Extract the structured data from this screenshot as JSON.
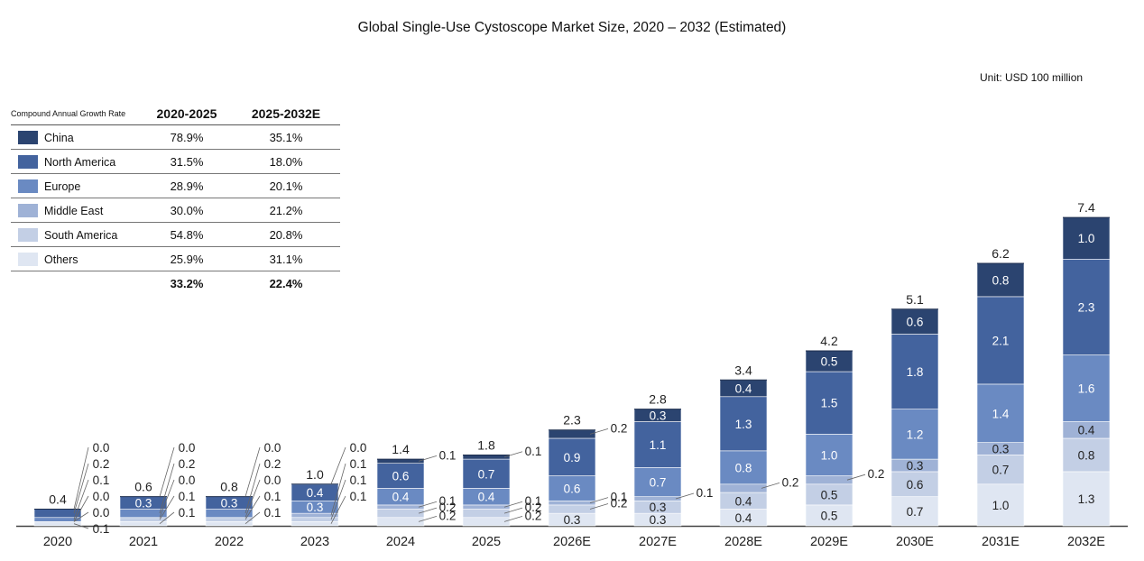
{
  "title": "Global Single-Use Cystoscope Market Size, 2020 – 2032 (Estimated)",
  "unit": "Unit: USD 100 million",
  "cagr_table": {
    "header_label": "Compound Annual Growth Rate",
    "col1": "2020-2025",
    "col2": "2025-2032E",
    "rows": [
      {
        "region": "China",
        "v1": "78.9%",
        "v2": "35.1%",
        "color": "#2b4470"
      },
      {
        "region": "North America",
        "v1": "31.5%",
        "v2": "18.0%",
        "color": "#43639e"
      },
      {
        "region": "Europe",
        "v1": "28.9%",
        "v2": "20.1%",
        "color": "#6a8ac2"
      },
      {
        "region": "Middle East",
        "v1": "30.0%",
        "v2": "21.2%",
        "color": "#9fb2d6"
      },
      {
        "region": "South America",
        "v1": "54.8%",
        "v2": "20.8%",
        "color": "#c3cfe5"
      },
      {
        "region": "Others",
        "v1": "25.9%",
        "v2": "31.1%",
        "color": "#dfe6f2"
      }
    ],
    "total": {
      "v1": "33.2%",
      "v2": "22.4%"
    }
  },
  "chart_data": {
    "type": "bar",
    "stacked": true,
    "categories": [
      "2020",
      "2021",
      "2022",
      "2023",
      "2024",
      "2025",
      "2026E",
      "2027E",
      "2028E",
      "2029E",
      "2030E",
      "2031E",
      "2032E"
    ],
    "totals": [
      "0.4",
      "0.6",
      "0.8",
      "1.0",
      "1.4",
      "1.8",
      "2.3",
      "2.8",
      "3.4",
      "4.2",
      "5.1",
      "6.2",
      "7.4"
    ],
    "series": [
      {
        "name": "Others",
        "color": "#dfe6f2",
        "values": [
          0.1,
          0.1,
          0.1,
          0.1,
          0.2,
          0.2,
          0.3,
          0.3,
          0.4,
          0.5,
          0.7,
          1.0,
          1.3
        ],
        "labels": [
          "0.1",
          "0.1",
          "0.1",
          "0.1",
          "0.2",
          "0.2",
          "0.3",
          "0.3",
          "0.4",
          "0.5",
          "0.7",
          "1.0",
          "1.3"
        ]
      },
      {
        "name": "South America",
        "color": "#c3cfe5",
        "values": [
          0.0,
          0.1,
          0.1,
          0.1,
          0.2,
          0.2,
          0.2,
          0.3,
          0.4,
          0.5,
          0.6,
          0.7,
          0.8
        ],
        "labels": [
          "0.0",
          "0.1",
          "0.1",
          "0.1",
          "0.2",
          "0.2",
          "0.2",
          "0.3",
          "0.4",
          "0.5",
          "0.6",
          "0.7",
          "0.8"
        ]
      },
      {
        "name": "Middle East",
        "color": "#9fb2d6",
        "values": [
          0.0,
          0.0,
          0.0,
          0.1,
          0.1,
          0.1,
          0.1,
          0.1,
          0.2,
          0.2,
          0.3,
          0.3,
          0.4
        ],
        "labels": [
          "0.0",
          "0.0",
          "0.0",
          "0.1",
          "0.1",
          "0.1",
          "0.1",
          "0.1",
          "0.2",
          "0.2",
          "0.3",
          "0.3",
          "0.4"
        ]
      },
      {
        "name": "Europe",
        "color": "#6a8ac2",
        "values": [
          0.1,
          0.2,
          0.2,
          0.3,
          0.4,
          0.4,
          0.6,
          0.7,
          0.8,
          1.0,
          1.2,
          1.4,
          1.6
        ],
        "labels": [
          "0.1",
          "0.2",
          "0.2",
          "0.3",
          "0.4",
          "0.4",
          "0.6",
          "0.7",
          "0.8",
          "1.0",
          "1.2",
          "1.4",
          "1.6"
        ]
      },
      {
        "name": "North America",
        "color": "#43639e",
        "values": [
          0.2,
          0.3,
          0.3,
          0.4,
          0.6,
          0.7,
          0.9,
          1.1,
          1.3,
          1.5,
          1.8,
          2.1,
          2.3
        ],
        "labels": [
          "0.2",
          "0.3",
          "0.3",
          "0.4",
          "0.6",
          "0.7",
          "0.9",
          "1.1",
          "1.3",
          "1.5",
          "1.8",
          "2.1",
          "2.3"
        ]
      },
      {
        "name": "China",
        "color": "#2b4470",
        "values": [
          0.0,
          0.0,
          0.0,
          0.0,
          0.1,
          0.1,
          0.2,
          0.3,
          0.4,
          0.5,
          0.6,
          0.8,
          1.0
        ],
        "labels": [
          "0.0",
          "0.0",
          "0.0",
          "0.0",
          "0.1",
          "0.1",
          "0.2",
          "0.3",
          "0.4",
          "0.5",
          "0.6",
          "0.8",
          "1.0"
        ]
      }
    ]
  }
}
